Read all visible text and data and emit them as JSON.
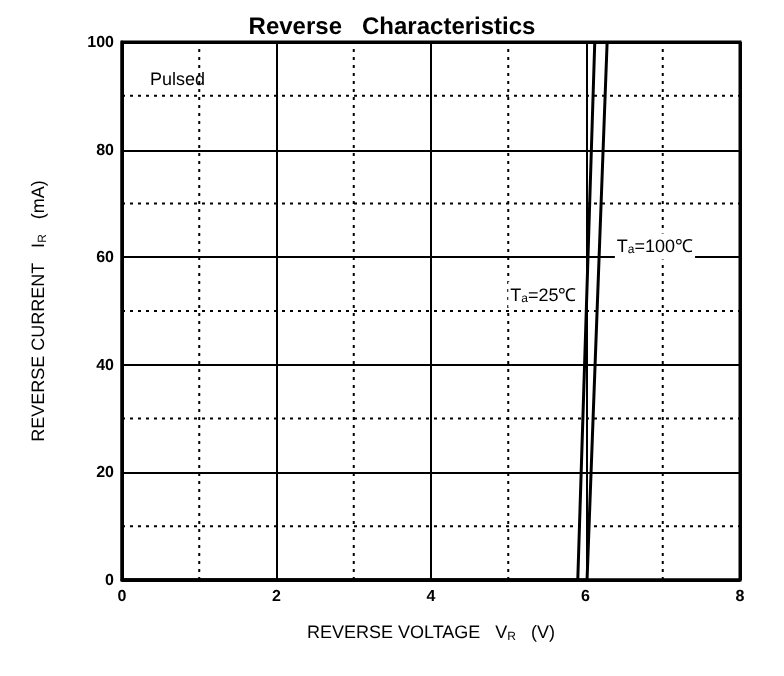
{
  "chart_data": {
    "type": "line",
    "title": "Reverse   Characteristics",
    "xlabel": "REVERSE VOLTAGE   V$_{R}$   (V)",
    "ylabel": "REVERSE CURRENT   I$_{R}$   (mA)",
    "annotations": [
      "Pulsed"
    ],
    "series": [
      {
        "name": "T$_{a}$=25℃",
        "color": "#000000",
        "x": [
          0,
          5.9,
          6.12
        ],
        "values": [
          0,
          0,
          100
        ]
      },
      {
        "name": "T$_{a}$=100℃",
        "color": "#000000",
        "x": [
          0,
          6.02,
          6.28
        ],
        "values": [
          0,
          0,
          100
        ]
      }
    ],
    "xlim": [
      0,
      8
    ],
    "xticks": [
      0,
      {
        "value": 1,
        "label": null
      },
      2,
      {
        "value": 3,
        "label": null
      },
      4,
      {
        "value": 5,
        "label": null
      },
      6,
      {
        "value": 7,
        "label": null
      },
      8
    ],
    "ylim": [
      0,
      100
    ],
    "yticks": [
      0,
      {
        "value": 10,
        "label": null
      },
      20,
      {
        "value": 30,
        "label": null
      },
      40,
      {
        "value": 50,
        "label": null
      },
      60,
      {
        "value": 70,
        "label": null
      },
      80,
      {
        "value": 90,
        "label": null
      },
      100
    ],
    "grid": true,
    "legend": false,
    "marker": "none",
    "line_style": "solid"
  }
}
